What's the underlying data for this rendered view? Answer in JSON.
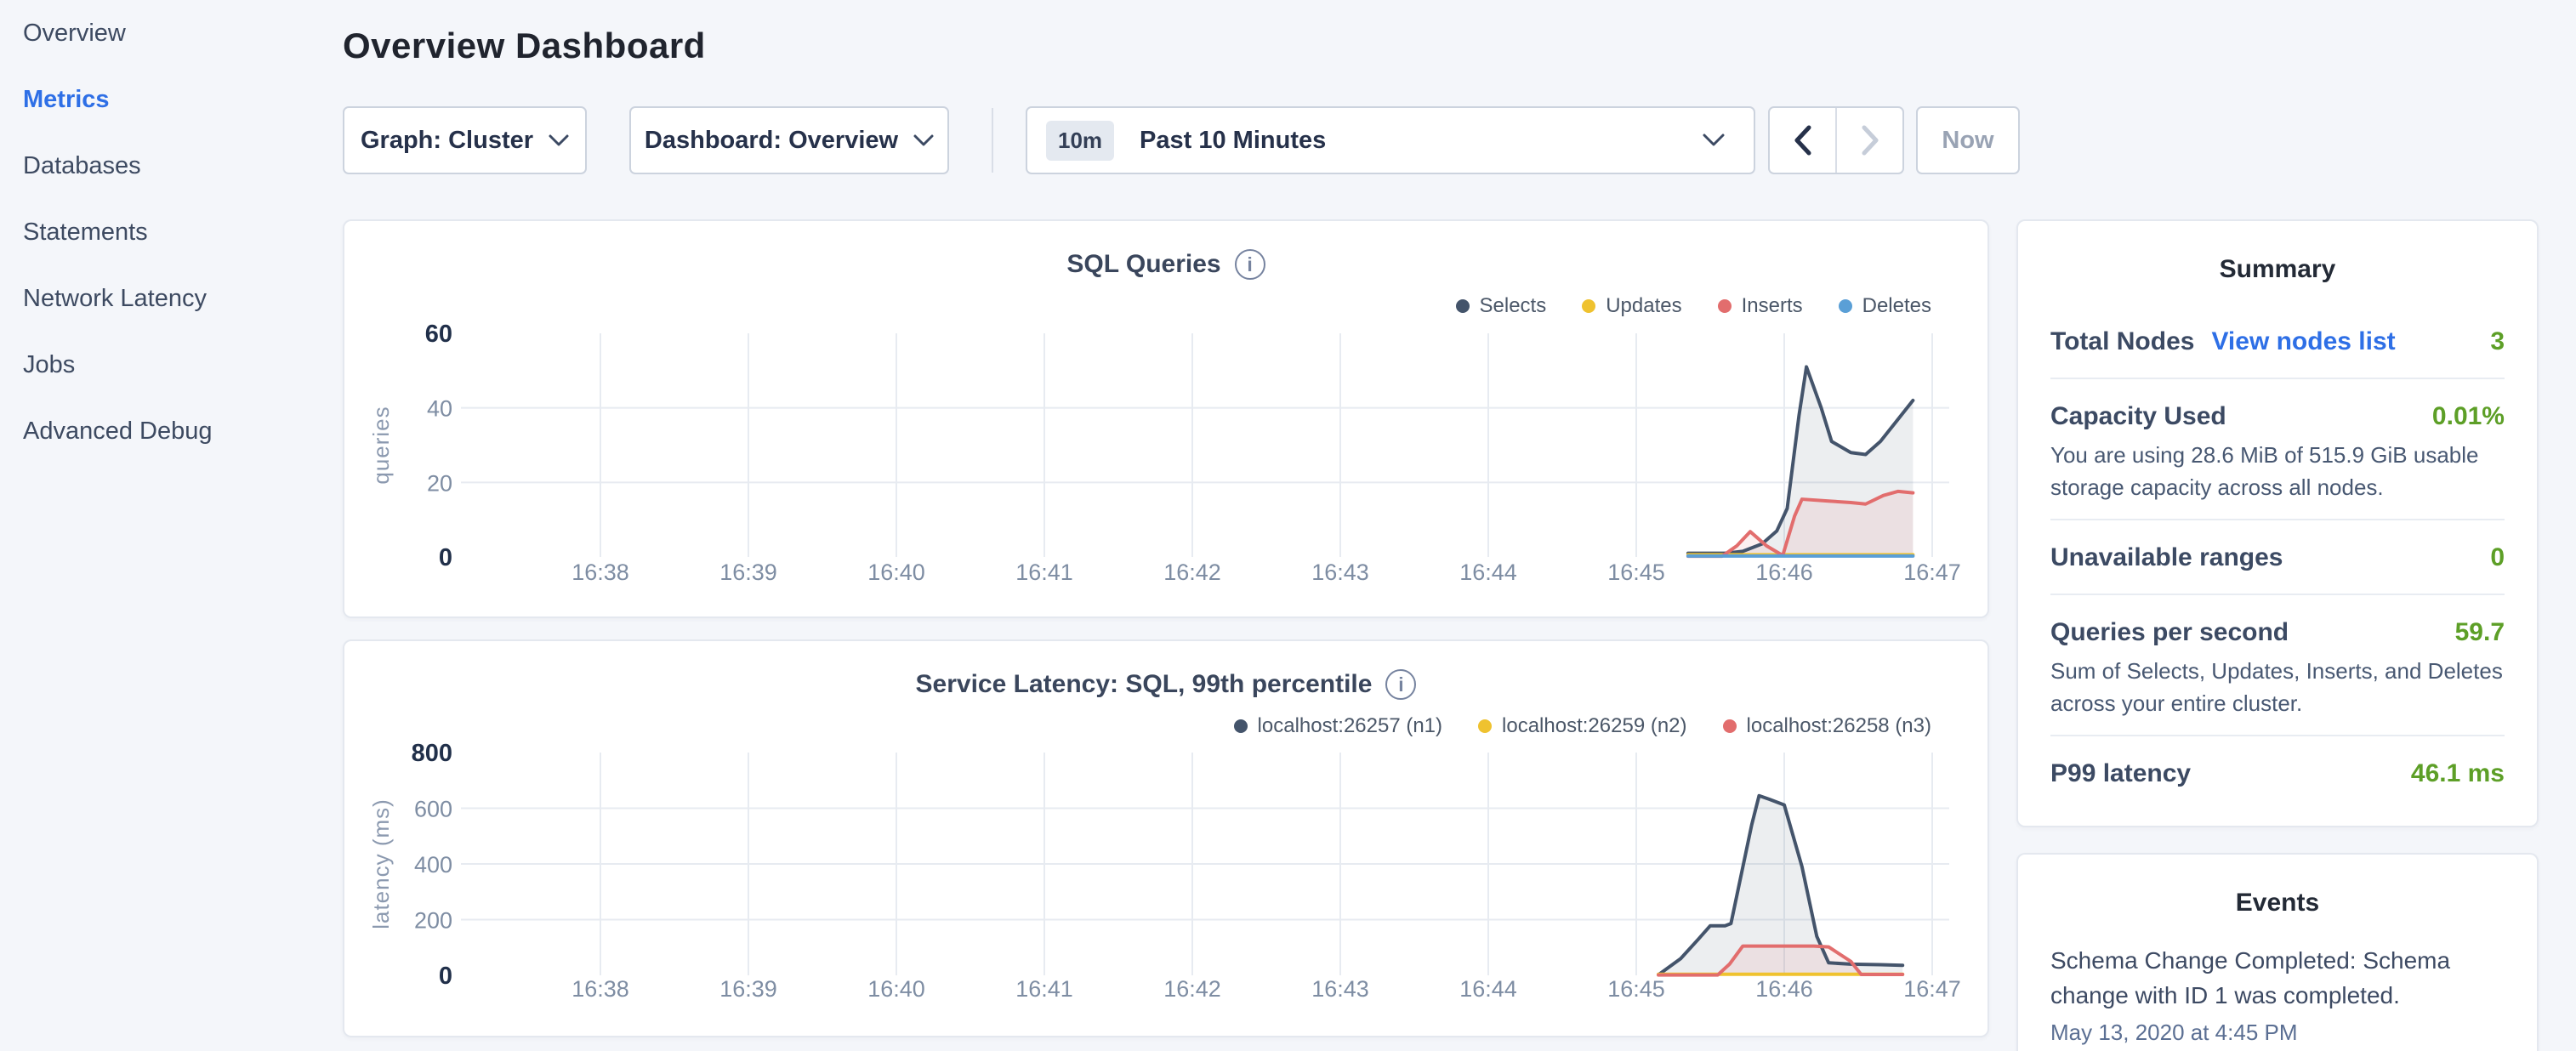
{
  "sidebar": {
    "items": [
      {
        "label": "Overview",
        "active": false
      },
      {
        "label": "Metrics",
        "active": true
      },
      {
        "label": "Databases",
        "active": false
      },
      {
        "label": "Statements",
        "active": false
      },
      {
        "label": "Network Latency",
        "active": false
      },
      {
        "label": "Jobs",
        "active": false
      },
      {
        "label": "Advanced Debug",
        "active": false
      }
    ]
  },
  "header": {
    "title": "Overview Dashboard"
  },
  "toolbar": {
    "graph_dropdown": "Graph: Cluster",
    "dashboard_dropdown": "Dashboard: Overview",
    "time_badge": "10m",
    "time_label": "Past 10 Minutes",
    "now_label": "Now"
  },
  "summary": {
    "title": "Summary",
    "rows": [
      {
        "label": "Total Nodes",
        "link": "View nodes list",
        "value": "3"
      },
      {
        "label": "Capacity Used",
        "value": "0.01%",
        "description": "You are using 28.6 MiB of 515.9 GiB usable storage capacity across all nodes."
      },
      {
        "label": "Unavailable ranges",
        "value": "0"
      },
      {
        "label": "Queries per second",
        "value": "59.7",
        "description": "Sum of Selects, Updates, Inserts, and Deletes across your entire cluster."
      },
      {
        "label": "P99 latency",
        "value": "46.1 ms"
      }
    ]
  },
  "events": {
    "title": "Events",
    "items": [
      {
        "message": "Schema Change Completed: Schema change with ID 1 was completed.",
        "timestamp": "May 13, 2020 at 4:45 PM"
      }
    ]
  },
  "colors": {
    "accent_blue": "#2e6fe6",
    "value_green": "#5d9f27",
    "series_navy": "#44546b",
    "series_yellow": "#efc22f",
    "series_red": "#e26d6d",
    "series_blue": "#5a9fd6"
  },
  "chart_data": [
    {
      "type": "area",
      "title": "SQL Queries",
      "ylabel": "queries",
      "ylim": [
        0,
        60
      ],
      "y_ticks": [
        0,
        20,
        40,
        60
      ],
      "x_ticks": [
        "16:38",
        "16:39",
        "16:40",
        "16:41",
        "16:42",
        "16:43",
        "16:44",
        "16:45",
        "16:46",
        "16:47"
      ],
      "x_unit": "minutes after 16:38",
      "grid": true,
      "legend_position": "top-right",
      "series": [
        {
          "name": "Selects",
          "color": "#44546b",
          "fill": "rgba(68,84,107,0.10)",
          "points": [
            [
              7.35,
              1
            ],
            [
              7.6,
              1
            ],
            [
              7.72,
              1.5
            ],
            [
              7.85,
              3.5
            ],
            [
              7.95,
              7
            ],
            [
              8.02,
              13
            ],
            [
              8.1,
              38
            ],
            [
              8.15,
              51
            ],
            [
              8.25,
              40
            ],
            [
              8.32,
              31
            ],
            [
              8.45,
              28
            ],
            [
              8.55,
              27.5
            ],
            [
              8.65,
              31
            ],
            [
              8.75,
              36
            ],
            [
              8.87,
              42
            ]
          ]
        },
        {
          "name": "Updates",
          "color": "#efc22f",
          "fill": "none",
          "points": [
            [
              7.35,
              0.6
            ],
            [
              8.87,
              0.6
            ]
          ]
        },
        {
          "name": "Inserts",
          "color": "#e26d6d",
          "fill": "rgba(226,109,109,0.10)",
          "points": [
            [
              7.35,
              0.2
            ],
            [
              7.58,
              0.2
            ],
            [
              7.68,
              3
            ],
            [
              7.77,
              6.8
            ],
            [
              7.88,
              3
            ],
            [
              7.99,
              0.4
            ],
            [
              8.07,
              11
            ],
            [
              8.12,
              15.5
            ],
            [
              8.3,
              15
            ],
            [
              8.45,
              14.6
            ],
            [
              8.55,
              14.2
            ],
            [
              8.67,
              16.5
            ],
            [
              8.77,
              17.6
            ],
            [
              8.87,
              17.2
            ]
          ]
        },
        {
          "name": "Deletes",
          "color": "#5a9fd6",
          "fill": "none",
          "points": [
            [
              7.35,
              0.25
            ],
            [
              8.87,
              0.25
            ]
          ]
        }
      ]
    },
    {
      "type": "area",
      "title": "Service Latency: SQL, 99th percentile",
      "ylabel": "latency (ms)",
      "ylim": [
        0,
        800
      ],
      "y_ticks": [
        0,
        200,
        400,
        600,
        800
      ],
      "x_ticks": [
        "16:38",
        "16:39",
        "16:40",
        "16:41",
        "16:42",
        "16:43",
        "16:44",
        "16:45",
        "16:46",
        "16:47"
      ],
      "x_unit": "minutes after 16:38",
      "grid": true,
      "legend_position": "top-right",
      "series": [
        {
          "name": "localhost:26257 (n1)",
          "color": "#44546b",
          "fill": "rgba(68,84,107,0.10)",
          "points": [
            [
              7.15,
              2
            ],
            [
              7.3,
              60
            ],
            [
              7.42,
              130
            ],
            [
              7.5,
              178
            ],
            [
              7.6,
              178
            ],
            [
              7.64,
              186
            ],
            [
              7.78,
              540
            ],
            [
              7.83,
              645
            ],
            [
              7.9,
              632
            ],
            [
              8.0,
              612
            ],
            [
              8.12,
              390
            ],
            [
              8.22,
              140
            ],
            [
              8.3,
              45
            ],
            [
              8.45,
              40
            ],
            [
              8.65,
              38
            ],
            [
              8.8,
              36
            ]
          ]
        },
        {
          "name": "localhost:26259 (n2)",
          "color": "#efc22f",
          "fill": "none",
          "points": [
            [
              7.15,
              4
            ],
            [
              8.8,
              4
            ]
          ]
        },
        {
          "name": "localhost:26258 (n3)",
          "color": "#e26d6d",
          "fill": "rgba(226,109,109,0.10)",
          "points": [
            [
              7.15,
              1
            ],
            [
              7.55,
              1
            ],
            [
              7.63,
              40
            ],
            [
              7.72,
              105
            ],
            [
              8.2,
              105
            ],
            [
              8.3,
              102
            ],
            [
              8.45,
              50
            ],
            [
              8.52,
              3
            ],
            [
              8.8,
              3
            ]
          ]
        }
      ]
    }
  ]
}
